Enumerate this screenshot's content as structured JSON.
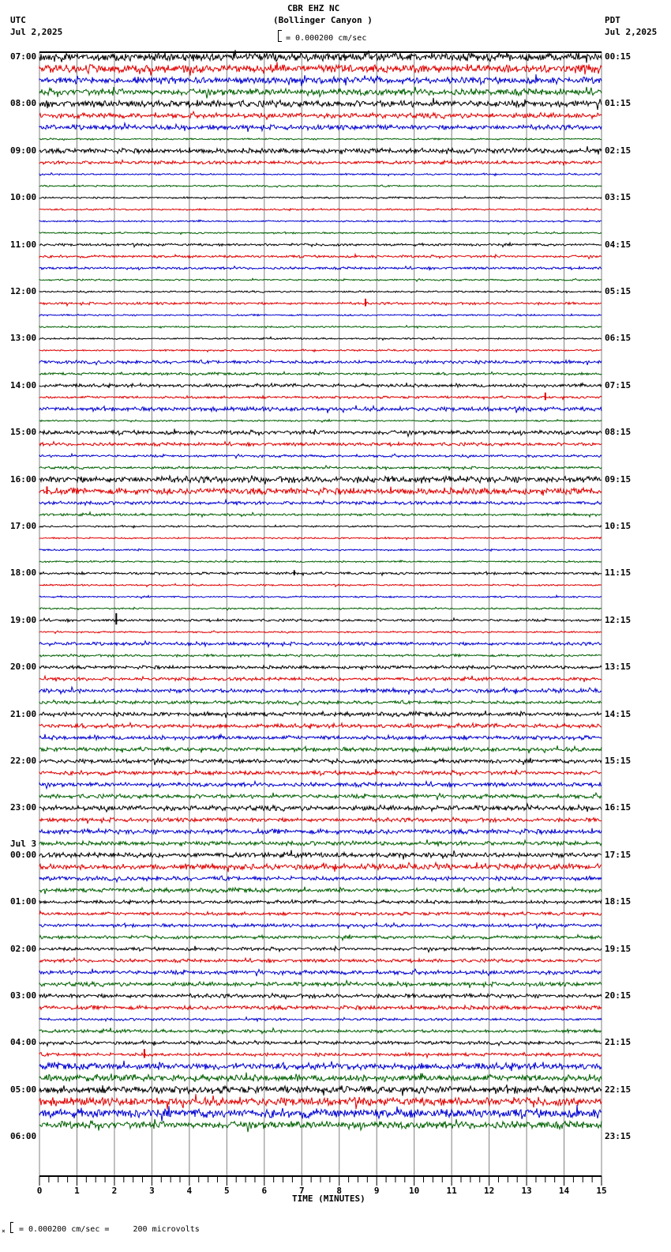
{
  "header": {
    "station": "CBR EHZ NC",
    "location": "(Bollinger Canyon )",
    "left_tz": "UTC",
    "left_date": "Jul 2,2025",
    "right_tz": "PDT",
    "right_date": "Jul 2,2025",
    "scale_text": "= 0.000200 cm/sec"
  },
  "footer": {
    "scale_text": "= 0.000200 cm/sec =     200 microvolts",
    "x_axis_title": "TIME (MINUTES)"
  },
  "colors": {
    "trace_cycle": [
      "#000000",
      "#e00000",
      "#0000d0",
      "#006000"
    ],
    "grid": "#808080",
    "axis": "#000000"
  },
  "chart_data": {
    "type": "line",
    "title": "CBR EHZ NC (Bollinger Canyon )",
    "subtitle": "Helicorder seismogram, 24 hours, 15 minutes per trace line",
    "xlabel": "TIME (MINUTES)",
    "ylabel": "",
    "x_ticks": [
      0,
      1,
      2,
      3,
      4,
      5,
      6,
      7,
      8,
      9,
      10,
      11,
      12,
      13,
      14,
      15
    ],
    "xlim": [
      0,
      15
    ],
    "grid": true,
    "traces_per_hour": 4,
    "left_labels": [
      "07:00",
      "08:00",
      "09:00",
      "10:00",
      "11:00",
      "12:00",
      "13:00",
      "14:00",
      "15:00",
      "16:00",
      "17:00",
      "18:00",
      "19:00",
      "20:00",
      "21:00",
      "22:00",
      "23:00",
      "00:00",
      "01:00",
      "02:00",
      "03:00",
      "04:00",
      "05:00",
      "06:00"
    ],
    "left_date_change": {
      "index": 17,
      "label": "Jul 3"
    },
    "right_labels": [
      "00:15",
      "01:15",
      "02:15",
      "03:15",
      "04:15",
      "05:15",
      "06:15",
      "07:15",
      "08:15",
      "09:15",
      "10:15",
      "11:15",
      "12:15",
      "13:15",
      "14:15",
      "15:15",
      "16:15",
      "17:15",
      "18:15",
      "19:15",
      "20:15",
      "21:15",
      "22:15",
      "23:15"
    ],
    "amplitudes": [
      5,
      5,
      4,
      4,
      4,
      3,
      3,
      1,
      3,
      2,
      1,
      1,
      1,
      1,
      1,
      1,
      1.5,
      1.5,
      1.5,
      1,
      1,
      1.5,
      1,
      1,
      1,
      1,
      2,
      1.5,
      2,
      1.5,
      2.5,
      1,
      2.5,
      2,
      1.5,
      1.5,
      4,
      4,
      2,
      1.5,
      1,
      1,
      1,
      1,
      1.5,
      1,
      1,
      1,
      1.5,
      1,
      2,
      1.5,
      2,
      2,
      2.5,
      2,
      2.5,
      2.5,
      2.5,
      2.5,
      2.5,
      2.5,
      2.5,
      2.5,
      3,
      2.5,
      3,
      2.5,
      3,
      3.5,
      2.5,
      2.5,
      2,
      2,
      2,
      2,
      2,
      2,
      2.5,
      2.5,
      2.5,
      2.5,
      1.5,
      2,
      2,
      2,
      4,
      4,
      4.5,
      5,
      5.5,
      4.5
    ],
    "events": [
      {
        "trace": 21,
        "minute": 8.7,
        "amp": 6
      },
      {
        "trace": 48,
        "minute": 2.05,
        "amp": 9
      },
      {
        "trace": 44,
        "minute": 6.8,
        "amp": 4
      },
      {
        "trace": 85,
        "minute": 2.8,
        "amp": 7
      },
      {
        "trace": 29,
        "minute": 13.5,
        "amp": 6
      },
      {
        "trace": 37,
        "minute": 0.2,
        "amp": 6
      }
    ]
  }
}
